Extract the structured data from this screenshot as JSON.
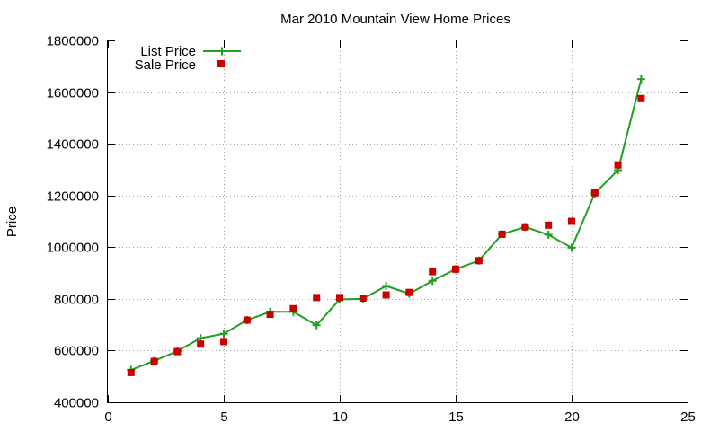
{
  "chart_data": {
    "type": "line",
    "title": "Mar 2010 Mountain View Home Prices",
    "xlabel": "",
    "ylabel": "Price",
    "xlim": [
      0,
      25
    ],
    "ylim": [
      400000,
      1800000
    ],
    "x_ticks": [
      "0",
      "5",
      "10",
      "15",
      "20",
      "25"
    ],
    "y_ticks": [
      "400000",
      "600000",
      "800000",
      "1000000",
      "1200000",
      "1400000",
      "1600000",
      "1800000"
    ],
    "grid": true,
    "legend_position": "top-left",
    "series": [
      {
        "name": "List Price",
        "style": "line-with-plus-markers",
        "color": "#1fa01f",
        "points": [
          [
            1,
            525000
          ],
          [
            2,
            560000
          ],
          [
            3,
            598000
          ],
          [
            4,
            648000
          ],
          [
            5,
            665000
          ],
          [
            6,
            718000
          ],
          [
            7,
            750000
          ],
          [
            8,
            750000
          ],
          [
            9,
            698000
          ],
          [
            10,
            798000
          ],
          [
            11,
            800000
          ],
          [
            12,
            850000
          ],
          [
            13,
            820000
          ],
          [
            14,
            870000
          ],
          [
            15,
            915000
          ],
          [
            16,
            948000
          ],
          [
            17,
            1050000
          ],
          [
            18,
            1078000
          ],
          [
            19,
            1048000
          ],
          [
            20,
            998000
          ],
          [
            21,
            1208000
          ],
          [
            22,
            1298000
          ],
          [
            23,
            1650000
          ]
        ]
      },
      {
        "name": "Sale Price",
        "style": "square-markers",
        "color": "#cc0000",
        "points": [
          [
            1,
            515000
          ],
          [
            2,
            558000
          ],
          [
            3,
            596000
          ],
          [
            4,
            625000
          ],
          [
            5,
            635000
          ],
          [
            6,
            718000
          ],
          [
            7,
            740000
          ],
          [
            8,
            762000
          ],
          [
            9,
            805000
          ],
          [
            10,
            805000
          ],
          [
            11,
            803000
          ],
          [
            12,
            815000
          ],
          [
            13,
            825000
          ],
          [
            14,
            905000
          ],
          [
            15,
            915000
          ],
          [
            16,
            948000
          ],
          [
            17,
            1050000
          ],
          [
            18,
            1078000
          ],
          [
            19,
            1085000
          ],
          [
            20,
            1100000
          ],
          [
            21,
            1210000
          ],
          [
            22,
            1318000
          ],
          [
            23,
            1575000
          ]
        ]
      }
    ]
  }
}
